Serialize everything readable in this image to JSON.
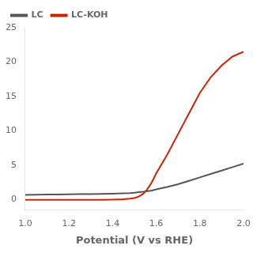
{
  "chart_data": {
    "type": "line",
    "x_label": "Potential (V vs RHE)",
    "series": [
      {
        "name": "LC",
        "color": "#555555",
        "x": [
          1.0,
          1.05,
          1.1,
          1.15,
          1.2,
          1.25,
          1.3,
          1.35,
          1.4,
          1.42,
          1.45,
          1.48,
          1.5,
          1.52,
          1.55,
          1.58,
          1.6,
          1.65,
          1.7,
          1.75,
          1.8,
          1.85,
          1.9,
          1.95,
          2.0
        ],
        "values": [
          0.65,
          0.68,
          0.7,
          0.72,
          0.74,
          0.76,
          0.78,
          0.8,
          0.83,
          0.85,
          0.88,
          0.92,
          0.97,
          1.05,
          1.15,
          1.28,
          1.45,
          1.8,
          2.2,
          2.7,
          3.2,
          3.7,
          4.2,
          4.7,
          5.2
        ]
      },
      {
        "name": "LC-KOH",
        "color": "#cc2200",
        "x": [
          1.0,
          1.05,
          1.1,
          1.2,
          1.3,
          1.35,
          1.4,
          1.42,
          1.44,
          1.46,
          1.48,
          1.5,
          1.52,
          1.54,
          1.56,
          1.58,
          1.6,
          1.65,
          1.7,
          1.75,
          1.8,
          1.85,
          1.9,
          1.95,
          2.0
        ],
        "values": [
          -0.08,
          -0.08,
          -0.08,
          -0.08,
          -0.07,
          -0.06,
          -0.04,
          -0.02,
          0.0,
          0.05,
          0.1,
          0.2,
          0.4,
          0.8,
          1.5,
          2.5,
          3.8,
          6.5,
          9.5,
          12.5,
          15.5,
          17.8,
          19.5,
          20.8,
          21.5
        ]
      }
    ],
    "xlim": [
      1.0,
      2.0
    ],
    "ylim": [
      -1.5,
      25
    ],
    "xticks": [
      {
        "value": 1.0,
        "label": "1.0"
      },
      1.2,
      1.4,
      1.6,
      1.8,
      {
        "value": 2.0,
        "label": "2.0"
      }
    ],
    "yticks": [
      0,
      5,
      10,
      15,
      20,
      25
    ],
    "grid": false,
    "legend": "top-left"
  }
}
